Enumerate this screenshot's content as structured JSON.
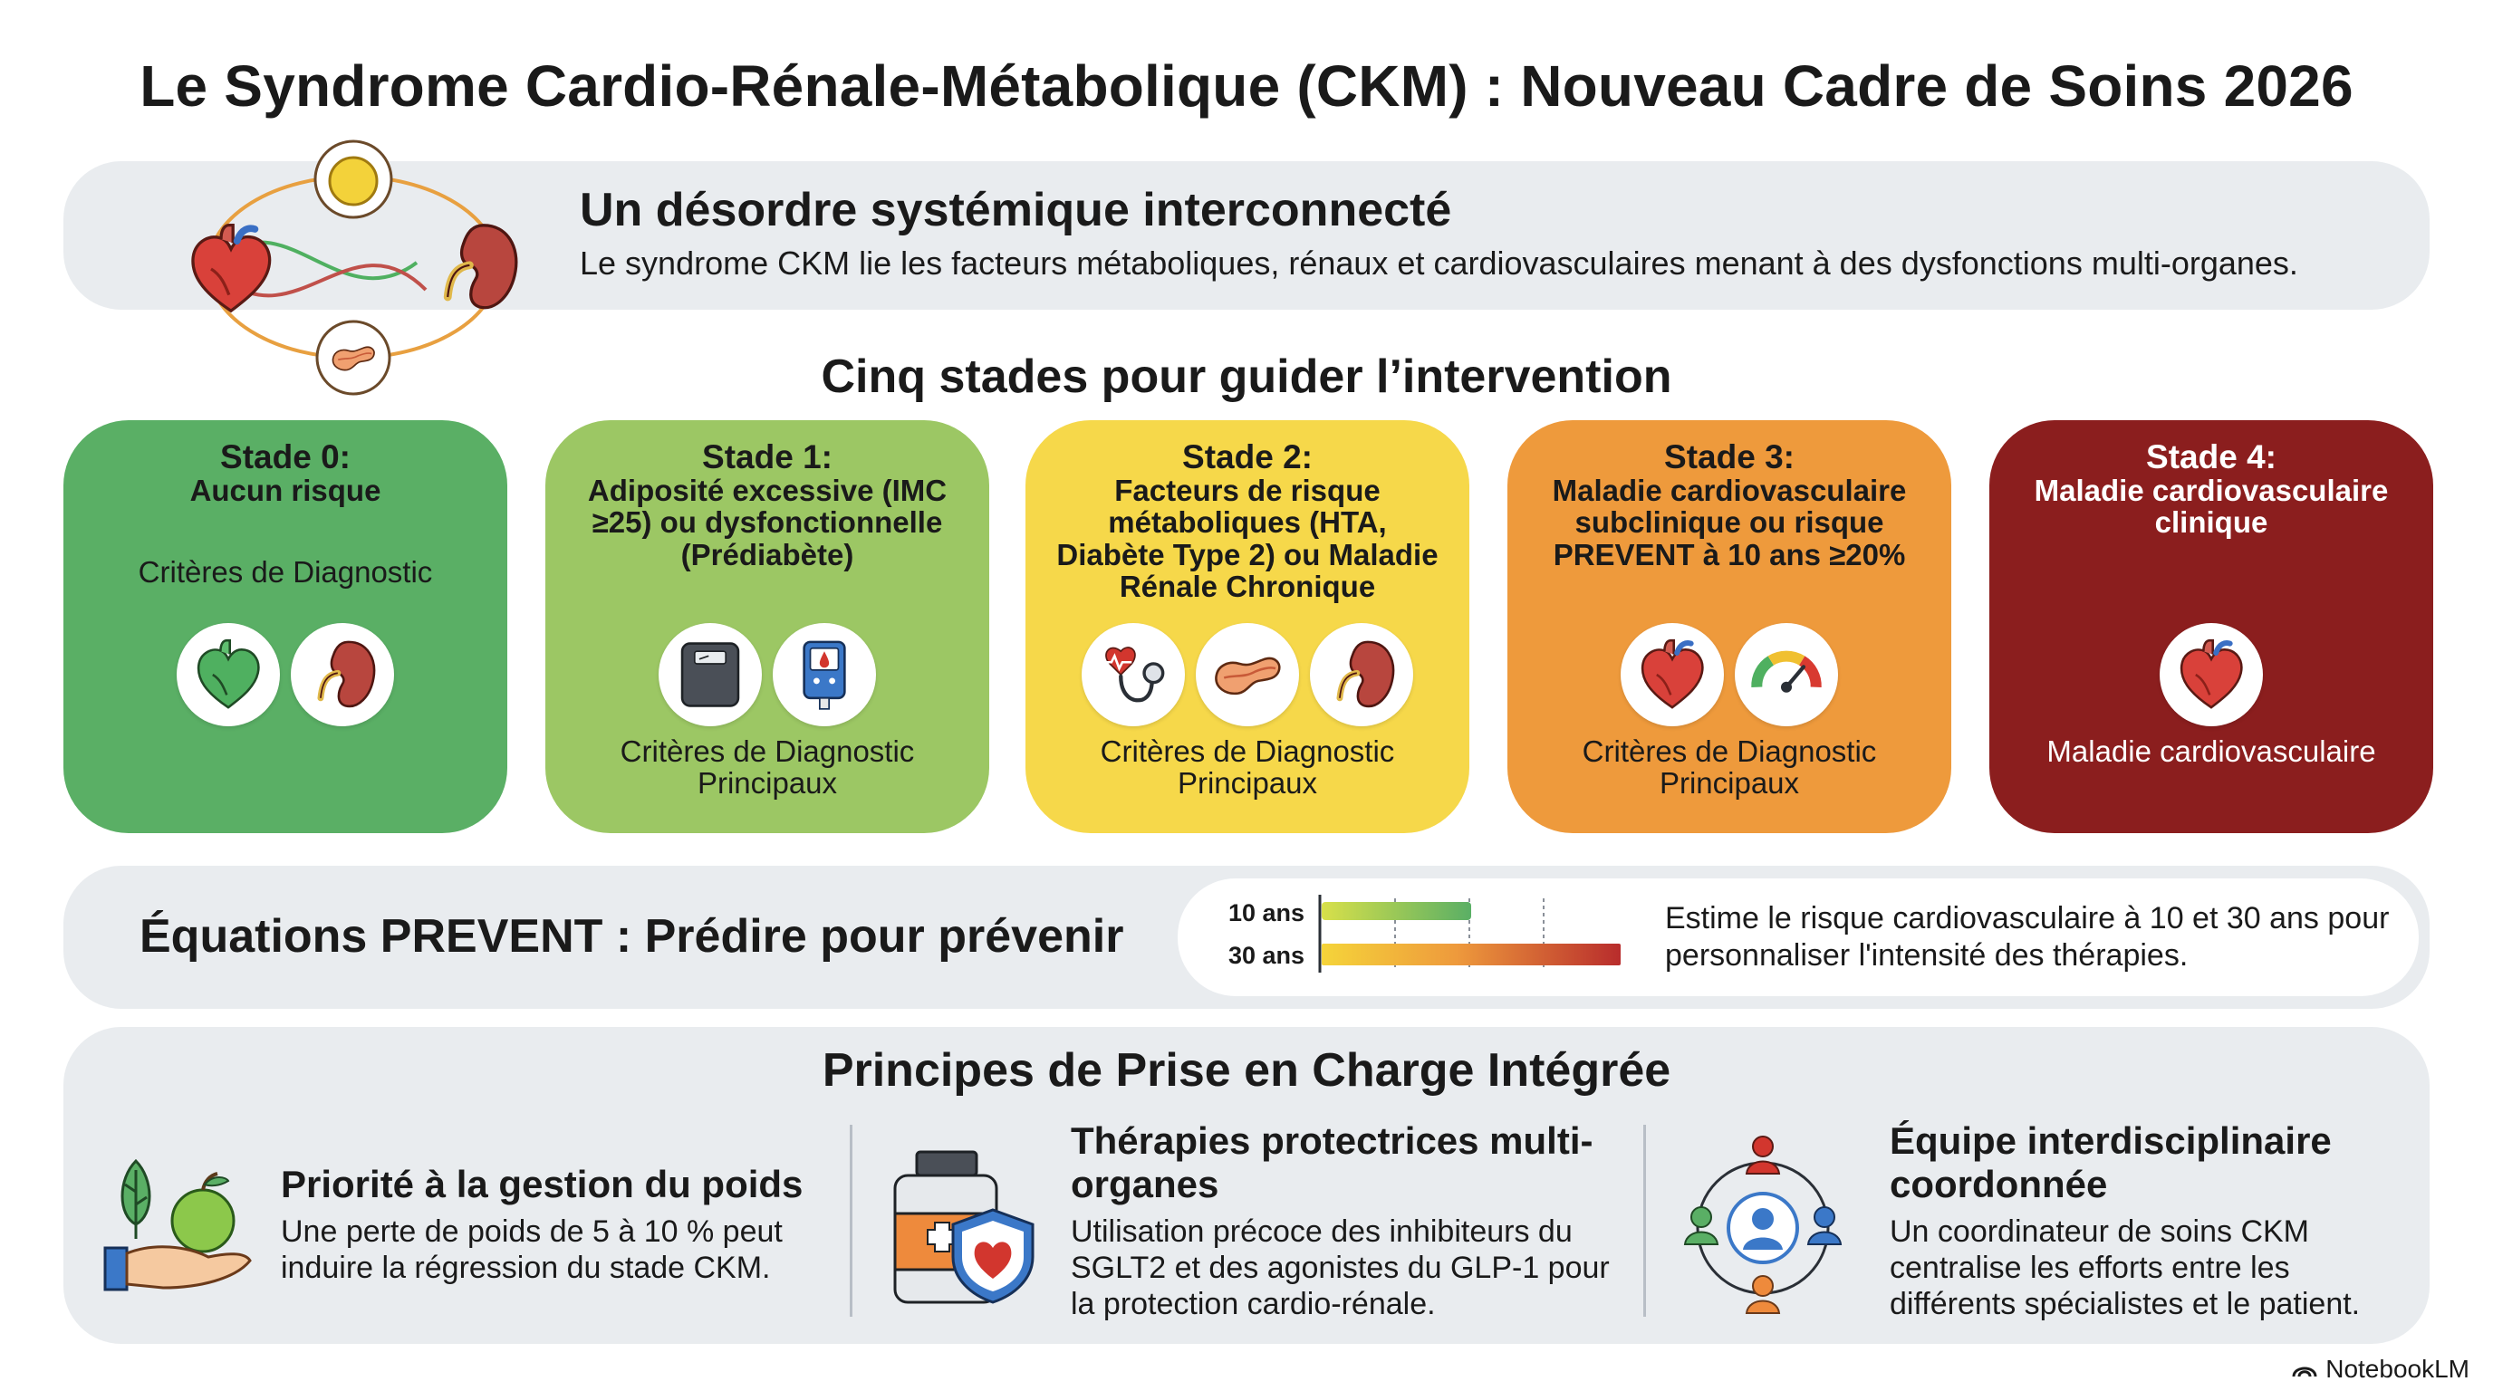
{
  "title": "Le Syndrome Cardio-Rénale-Métabolique (CKM) : Nouveau Cadre de Soins 2026",
  "intro": {
    "heading": "Un désordre systémique interconnecté",
    "text": "Le syndrome CKM lie les facteurs métaboliques, rénaux et cardiovasculaires menant à des dysfonctions multi-organes."
  },
  "stages_heading": "Cinq stades pour guider l’intervention",
  "stages": [
    {
      "title": "Stade 0:",
      "desc": "Aucun risque",
      "criteria": "Critères de Diagnostic",
      "color": "#5aaf65",
      "icons": [
        "heart-icon",
        "kidney-icon"
      ]
    },
    {
      "title": "Stade 1:",
      "desc": "Adiposité excessive (IMC ≥25) ou dysfonctionnelle (Prédiabète)",
      "criteria": "Critères de Diagnostic Principaux",
      "color": "#9cc764",
      "icons": [
        "scale-icon",
        "glucometer-icon"
      ]
    },
    {
      "title": "Stade 2:",
      "desc": "Facteurs de risque métaboliques (HTA, Diabète Type 2) ou Maladie Rénale Chronique",
      "criteria": "Critères de Diagnostic Principaux",
      "color": "#f6d84a",
      "icons": [
        "stethoscope-icon",
        "pancreas-icon",
        "kidney-icon"
      ]
    },
    {
      "title": "Stade 3:",
      "desc": "Maladie cardiovasculaire subclinique ou risque PREVENT à 10 ans ≥20%",
      "criteria": "Critères de Diagnostic Principaux",
      "color": "#ee9a3c",
      "icons": [
        "heart-icon",
        "gauge-icon"
      ]
    },
    {
      "title": "Stade 4:",
      "desc": "Maladie cardiovasculaire clinique",
      "criteria": "Maladie cardiovasculaire",
      "color": "#8b1e1e",
      "icons": [
        "heart-icon"
      ]
    }
  ],
  "prevent": {
    "heading": "Équations PREVENT : Prédire pour prévenir",
    "bars": [
      {
        "label": "10 ans",
        "fraction": 0.5
      },
      {
        "label": "30 ans",
        "fraction": 1.0
      }
    ],
    "text": "Estime le risque cardiovasculaire à 10 et 30 ans pour personnaliser l'intensité des thérapies."
  },
  "principles_heading": "Principes de Prise en Charge Intégrée",
  "principles": [
    {
      "icon": "weight-management-icon",
      "title": "Priorité à la gestion du poids",
      "text": "Une perte de poids de 5 à 10 % peut induire la régression du stade CKM."
    },
    {
      "icon": "medication-shield-icon",
      "title": "Thérapies protectrices multi-organes",
      "text": "Utilisation précoce des inhibiteurs du SGLT2 et des agonistes du GLP-1 pour la protection cardio-rénale."
    },
    {
      "icon": "team-network-icon",
      "title": "Équipe interdisciplinaire coordonnée",
      "text": "Un coordinateur de soins CKM centralise les efforts entre les différents spécialistes et le patient."
    }
  ],
  "footer": "NotebookLM"
}
